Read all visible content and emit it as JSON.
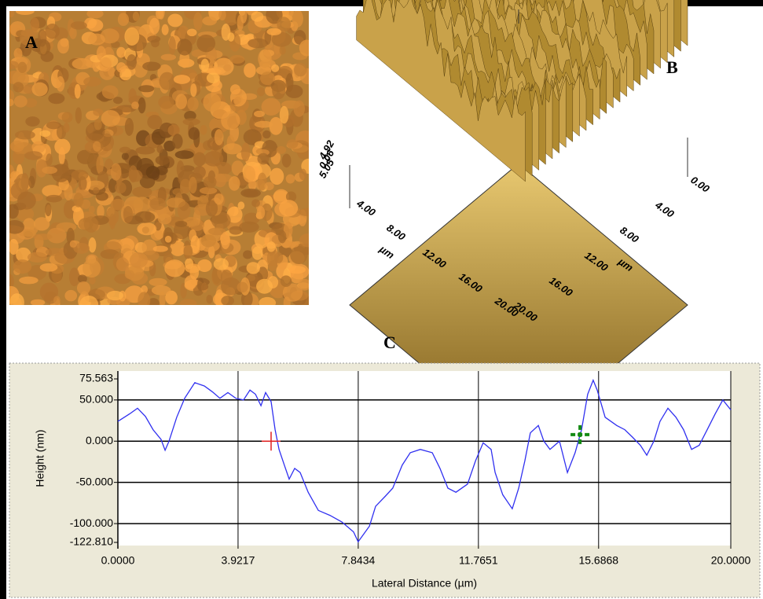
{
  "panels": {
    "a_label": "A",
    "b_label": "B",
    "c_label": "C"
  },
  "panel_b": {
    "left_axis": [
      "4.00",
      "8.00",
      "12.00",
      "16.00",
      "20.00"
    ],
    "left_unit": "µm",
    "right_axis": [
      "0.00",
      "4.00",
      "8.00",
      "12.00",
      "16.00",
      "20.00"
    ],
    "right_unit": "µm",
    "z_axis": [
      "4.92",
      "0.06",
      "5.05"
    ]
  },
  "chart_data": {
    "type": "line",
    "xlabel": "Lateral Distance (µm)",
    "ylabel": "Height (nm)",
    "color": "#3030f0",
    "x": [
      0,
      0.38,
      0.64,
      0.9,
      1.15,
      1.41,
      1.54,
      1.67,
      1.92,
      2.18,
      2.51,
      2.82,
      3.08,
      3.33,
      3.59,
      3.85,
      4.1,
      4.31,
      4.49,
      4.67,
      4.82,
      5.0,
      5.13,
      5.26,
      5.44,
      5.59,
      5.77,
      5.95,
      6.21,
      6.54,
      6.92,
      7.31,
      7.69,
      7.84,
      8.21,
      8.41,
      8.72,
      8.97,
      9.28,
      9.54,
      9.87,
      10.26,
      10.51,
      10.77,
      11.03,
      11.41,
      11.67,
      11.92,
      12.18,
      12.31,
      12.56,
      12.87,
      13.08,
      13.28,
      13.46,
      13.72,
      13.9,
      14.1,
      14.41,
      14.67,
      14.92,
      15.13,
      15.33,
      15.51,
      15.64,
      15.9,
      16.28,
      16.54,
      16.79,
      17.05,
      17.26,
      17.49,
      17.69,
      17.95,
      18.21,
      18.46,
      18.72,
      18.97,
      19.23,
      19.49,
      19.74,
      20.0
    ],
    "values": [
      24,
      33,
      40,
      30,
      14,
      2,
      -11,
      0,
      29,
      52,
      71,
      67,
      60,
      52,
      59,
      52,
      50,
      62,
      57,
      43,
      59,
      48,
      14,
      -10,
      -30,
      -46,
      -33,
      -38,
      -62,
      -84,
      -90,
      -98,
      -110,
      -122,
      -103,
      -79,
      -67,
      -57,
      -29,
      -14,
      -10,
      -14,
      -33,
      -57,
      -62,
      -52,
      -24,
      -2,
      -10,
      -38,
      -65,
      -82,
      -57,
      -24,
      10,
      19,
      0,
      -10,
      0,
      -38,
      -14,
      14,
      57,
      74,
      62,
      29,
      19,
      14,
      5,
      -5,
      -17,
      0,
      24,
      40,
      29,
      14,
      -10,
      -5,
      14,
      33,
      50,
      38
    ],
    "xlim": [
      0,
      20
    ],
    "ylim": [
      -122.81,
      75.563
    ],
    "xticks": [
      {
        "value": 0,
        "label": "0.0000"
      },
      3.9217,
      7.8434,
      11.7651,
      15.6868,
      {
        "value": 20,
        "label": "20.0000"
      }
    ],
    "yticks": [
      75.563,
      {
        "value": 50,
        "label": "50.000"
      },
      {
        "value": 0,
        "label": "0.000"
      },
      {
        "value": -50,
        "label": "-50.000"
      },
      {
        "value": -100,
        "label": "-100.000"
      },
      {
        "value": -122.81,
        "label": "-122.810"
      }
    ],
    "cursors": [
      {
        "color": "#e02020",
        "x": 5.0,
        "y": 0
      },
      {
        "color": "#138a13",
        "x": 15.08,
        "y": 8
      }
    ]
  }
}
